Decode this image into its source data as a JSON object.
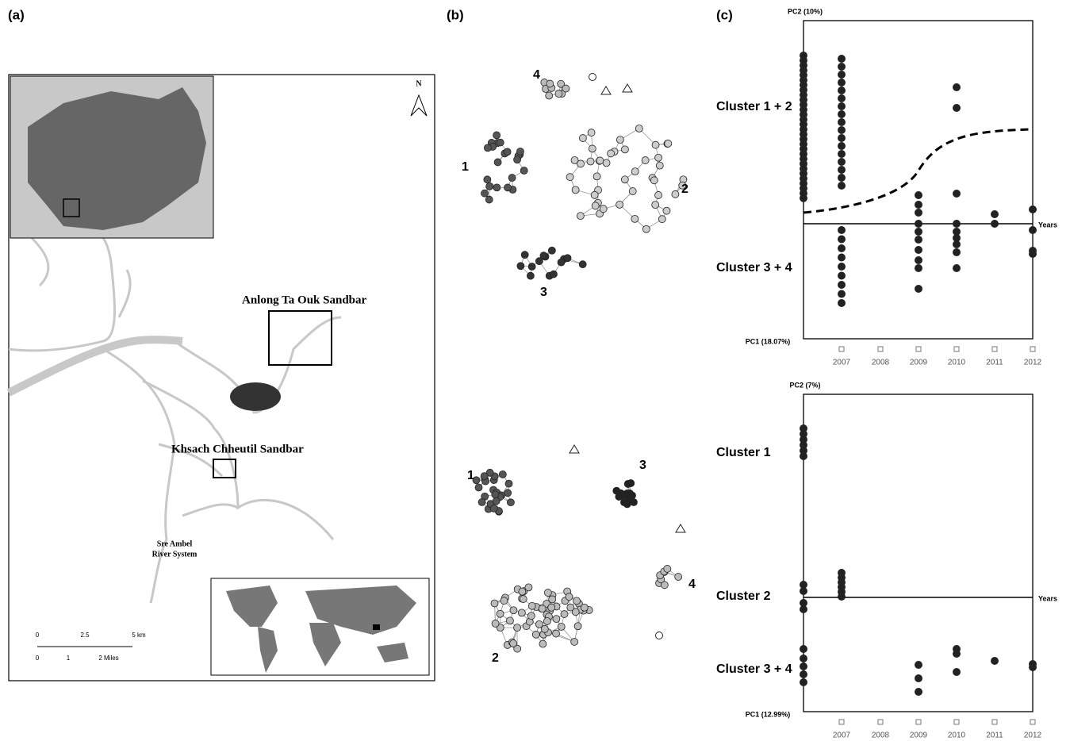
{
  "panels": {
    "a": {
      "label": "(a)",
      "north": "N",
      "sites": [
        "Anlong Ta Ouk Sandbar",
        "Khsach Chheutil Sandbar"
      ],
      "river": [
        "Sre Ambel",
        "River System"
      ],
      "scale_km": [
        "0",
        "2.5",
        "5 km"
      ],
      "scale_miles": [
        "0",
        "1",
        "2 Miles"
      ]
    },
    "b": {
      "label": "(b)",
      "top_clusters": [
        "1",
        "2",
        "3",
        "4"
      ],
      "bottom_clusters": [
        "1",
        "2",
        "3",
        "4"
      ]
    },
    "c": {
      "label": "(c)",
      "plots": [
        {
          "y_axis": "PC2 (10%)",
          "x_axis": "PC1 (18.07%)",
          "clusters": [
            "Cluster 1 + 2",
            "Cluster 3 + 4"
          ],
          "time_label": "Years",
          "years": [
            "2007",
            "2008",
            "2009",
            "2010",
            "2011",
            "2012"
          ]
        },
        {
          "y_axis": "PC2 (7%)",
          "x_axis": "PC1 (12.99%)",
          "clusters": [
            "Cluster 1",
            "Cluster 2",
            "Cluster 3 + 4"
          ],
          "time_label": "Years",
          "years": [
            "2007",
            "2008",
            "2009",
            "2010",
            "2011",
            "2012"
          ]
        }
      ]
    }
  }
}
